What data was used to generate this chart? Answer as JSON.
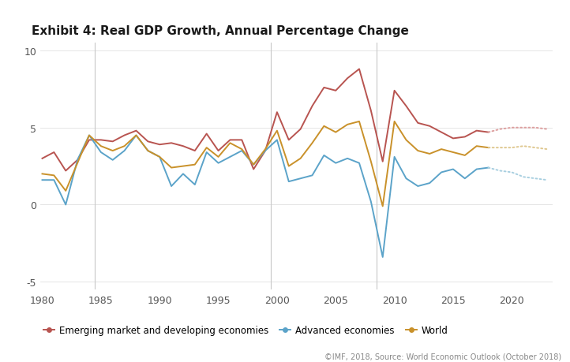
{
  "title": "Exhibit 4: Real GDP Growth, Annual Percentage Change",
  "source_text": "©IMF, 2018, Source: World Economic Outlook (October 2018)",
  "background_color": "#ffffff",
  "years_actual": [
    1980,
    1981,
    1982,
    1983,
    1984,
    1985,
    1986,
    1987,
    1988,
    1989,
    1990,
    1991,
    1992,
    1993,
    1994,
    1995,
    1996,
    1997,
    1998,
    1999,
    2000,
    2001,
    2002,
    2003,
    2004,
    2005,
    2006,
    2007,
    2008,
    2009,
    2010,
    2011,
    2012,
    2013,
    2014,
    2015,
    2016,
    2017,
    2018
  ],
  "years_forecast": [
    2018,
    2019,
    2020,
    2021,
    2022,
    2023
  ],
  "emerging_actual": [
    3.0,
    3.4,
    2.2,
    2.9,
    4.2,
    4.2,
    4.1,
    4.5,
    4.8,
    4.1,
    3.9,
    4.0,
    3.8,
    3.5,
    4.6,
    3.5,
    4.2,
    4.2,
    2.3,
    3.5,
    6.0,
    4.2,
    4.9,
    6.4,
    7.6,
    7.4,
    8.2,
    8.8,
    6.1,
    2.8,
    7.4,
    6.4,
    5.3,
    5.1,
    4.7,
    4.3,
    4.4,
    4.8,
    4.7
  ],
  "emerging_forecast": [
    4.7,
    4.9,
    5.0,
    5.0,
    5.0,
    4.9
  ],
  "advanced_actual": [
    1.6,
    1.6,
    0.0,
    2.9,
    4.5,
    3.4,
    2.9,
    3.5,
    4.5,
    3.5,
    3.1,
    1.2,
    2.0,
    1.3,
    3.4,
    2.7,
    3.1,
    3.5,
    2.6,
    3.5,
    4.2,
    1.5,
    1.7,
    1.9,
    3.2,
    2.7,
    3.0,
    2.7,
    0.2,
    -3.4,
    3.1,
    1.7,
    1.2,
    1.4,
    2.1,
    2.3,
    1.7,
    2.3,
    2.4
  ],
  "advanced_forecast": [
    2.4,
    2.2,
    2.1,
    1.8,
    1.7,
    1.6
  ],
  "world_actual": [
    2.0,
    1.9,
    0.9,
    2.7,
    4.5,
    3.8,
    3.5,
    3.8,
    4.5,
    3.5,
    3.1,
    2.4,
    2.5,
    2.6,
    3.7,
    3.1,
    4.0,
    3.6,
    2.6,
    3.6,
    4.8,
    2.5,
    3.0,
    4.0,
    5.1,
    4.7,
    5.2,
    5.4,
    2.8,
    -0.1,
    5.4,
    4.2,
    3.5,
    3.3,
    3.6,
    3.4,
    3.2,
    3.8,
    3.7
  ],
  "world_forecast": [
    3.7,
    3.7,
    3.7,
    3.8,
    3.7,
    3.6
  ],
  "color_emerging": "#b85450",
  "color_advanced": "#5ba3c9",
  "color_world": "#c9912a",
  "color_emerging_forecast": "#dda0a0",
  "color_advanced_forecast": "#a8cfe0",
  "color_world_forecast": "#dfc890",
  "ylim": [
    -5.5,
    10.5
  ],
  "yticks": [
    -5,
    0,
    5,
    10
  ],
  "xlim": [
    1979.8,
    2023.5
  ],
  "xticks": [
    1980,
    1985,
    1990,
    1995,
    2000,
    2005,
    2010,
    2015,
    2020
  ],
  "vline_x": [
    1984.5,
    1999.5,
    2008.5
  ],
  "legend_labels": [
    "Emerging market and developing economies",
    "Advanced economies",
    "World"
  ],
  "linewidth": 1.4
}
